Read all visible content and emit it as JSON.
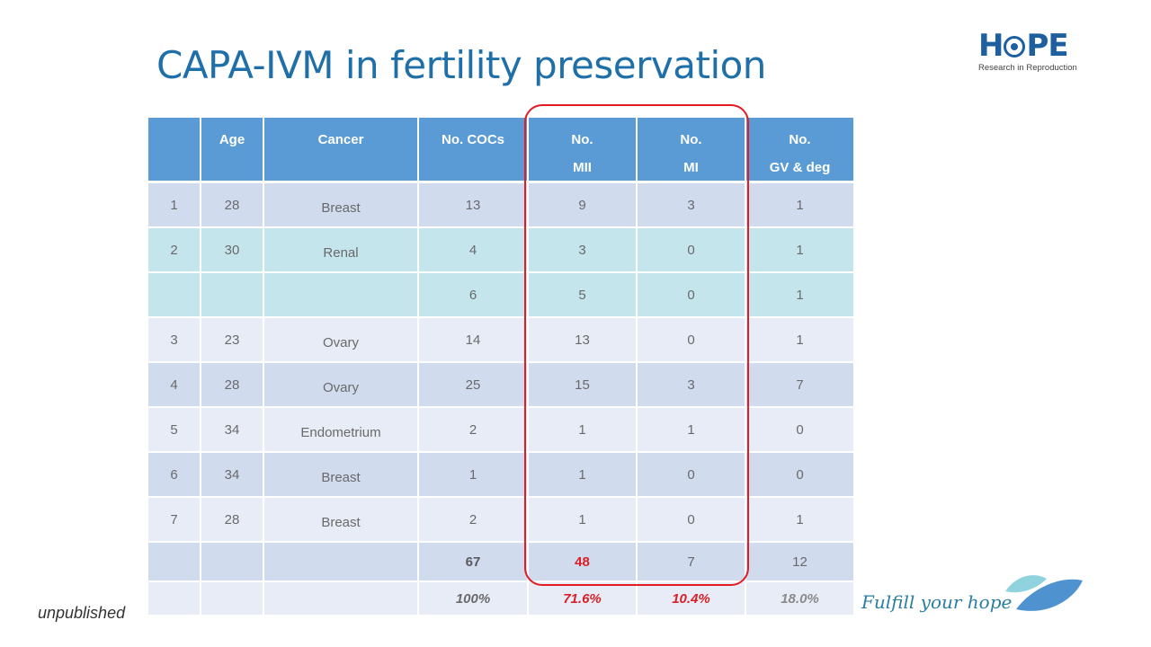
{
  "title": "CAPA-IVM in fertility preservation",
  "logo": {
    "word_left": "H",
    "word_right": "PE",
    "subtitle": "Research in Reproduction",
    "icon": "eye-icon"
  },
  "table": {
    "headers": [
      {
        "line1": "",
        "line2": ""
      },
      {
        "line1": "Age",
        "line2": ""
      },
      {
        "line1": "Cancer",
        "line2": ""
      },
      {
        "line1": "No. COCs",
        "line2": ""
      },
      {
        "line1": "No.",
        "line2": "MII"
      },
      {
        "line1": "No.",
        "line2": "MI"
      },
      {
        "line1": "No.",
        "line2": "GV & deg"
      }
    ],
    "rows": [
      {
        "id": "1",
        "age": "28",
        "cancer": "Breast",
        "cocs": "13",
        "mii": "9",
        "mi": "3",
        "gv": "1"
      },
      {
        "id": "2",
        "age": "30",
        "cancer": "Renal",
        "cocs": "4",
        "mii": "3",
        "mi": "0",
        "gv": "1"
      },
      {
        "id": "",
        "age": "",
        "cancer": "",
        "cocs": "6",
        "mii": "5",
        "mi": "0",
        "gv": "1"
      },
      {
        "id": "3",
        "age": "23",
        "cancer": "Ovary",
        "cocs": "14",
        "mii": "13",
        "mi": "0",
        "gv": "1"
      },
      {
        "id": "4",
        "age": "28",
        "cancer": "Ovary",
        "cocs": "25",
        "mii": "15",
        "mi": "3",
        "gv": "7"
      },
      {
        "id": "5",
        "age": "34",
        "cancer": "Endometrium",
        "cocs": "2",
        "mii": "1",
        "mi": "1",
        "gv": "0"
      },
      {
        "id": "6",
        "age": "34",
        "cancer": "Breast",
        "cocs": "1",
        "mii": "1",
        "mi": "0",
        "gv": "0"
      },
      {
        "id": "7",
        "age": "28",
        "cancer": "Breast",
        "cocs": "2",
        "mii": "1",
        "mi": "0",
        "gv": "1"
      }
    ],
    "totals": {
      "cocs": "67",
      "mii": "48",
      "mi": "7",
      "gv": "12"
    },
    "percentages": {
      "cocs": "100%",
      "mii": "71.6%",
      "mi": "10.4%",
      "gv": "18.0%"
    }
  },
  "footer": {
    "note": "unpublished",
    "tagline": "Fulfill your hope",
    "icon": "leaf-icon"
  },
  "colors": {
    "title": "#1F6FA8",
    "header_bg": "#5B9BD5",
    "highlight": "#E31B23",
    "row_blue": "#D0DBEE",
    "row_cyan": "#C4E5EC",
    "row_pale": "#E8ECF6"
  }
}
